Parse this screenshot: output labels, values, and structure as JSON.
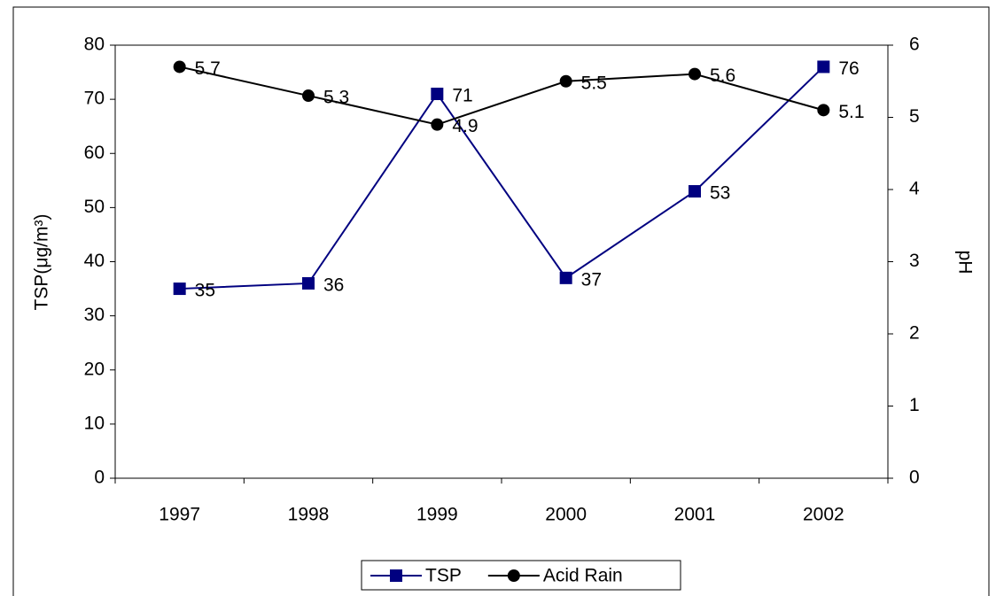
{
  "chart_data": {
    "type": "line",
    "categories": [
      "1997",
      "1998",
      "1999",
      "2000",
      "2001",
      "2002"
    ],
    "series": [
      {
        "name": "TSP",
        "color": "#000080",
        "marker": "square",
        "values": [
          35,
          36,
          71,
          37,
          53,
          76
        ]
      },
      {
        "name": "Acid Rain",
        "color": "#000000",
        "marker": "circle",
        "axis": "y2",
        "values": [
          5.7,
          5.3,
          4.9,
          5.5,
          5.6,
          5.1
        ]
      }
    ],
    "y_label": "TSP(μg/m³)",
    "y2_label": "pH",
    "ylim": [
      0,
      80
    ],
    "yticks": [
      0,
      10,
      20,
      30,
      40,
      50,
      60,
      70,
      80
    ],
    "y2lim": [
      0,
      6
    ],
    "y2ticks": [
      0,
      1,
      2,
      3,
      4,
      5,
      6
    ]
  }
}
